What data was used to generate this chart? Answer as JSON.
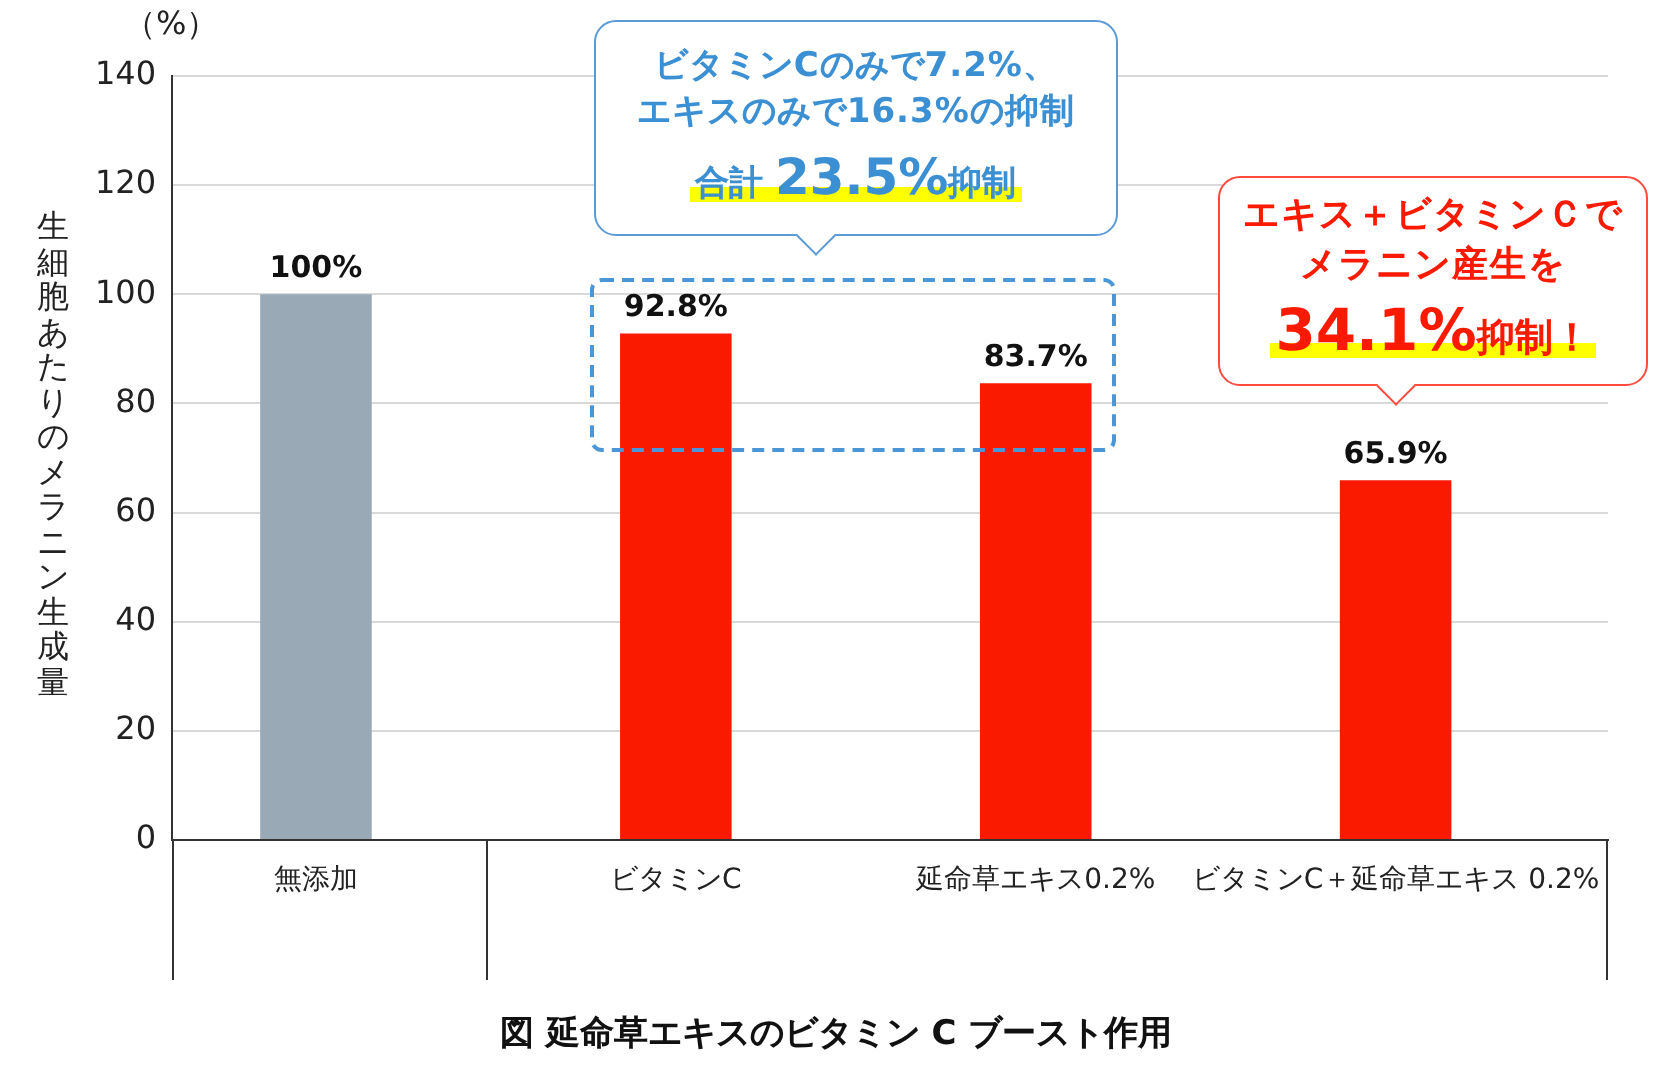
{
  "chart_data": {
    "type": "bar",
    "title": "図 延命草エキスのビタミン C ブースト作用",
    "ylabel": "生細胞あたりのメラニン生成量",
    "categories": [
      "無添加",
      "ビタミンC",
      "延命草エキス0.2%",
      "ビタミンC＋延命草エキス 0.2%"
    ],
    "values": [
      100,
      92.8,
      83.7,
      65.9
    ],
    "colors": [
      "#9aa9b6",
      "#fa1a00",
      "#fa1a00",
      "#fa1a00"
    ],
    "value_labels": [
      "100%",
      "92.8%",
      "83.7%",
      "65.9%"
    ],
    "ylim": [
      0,
      140
    ],
    "yticks": [
      0,
      20,
      40,
      60,
      80,
      100,
      120,
      140
    ],
    "grid": "y",
    "annotations": [
      "（%）",
      "ビタミンCのみで7.2%、エキスのみで16.3%の抑制",
      "合計 23.5%抑制",
      "エキス＋ビタミンＣでメラニン産生を",
      "34.1%抑制！"
    ]
  }
}
